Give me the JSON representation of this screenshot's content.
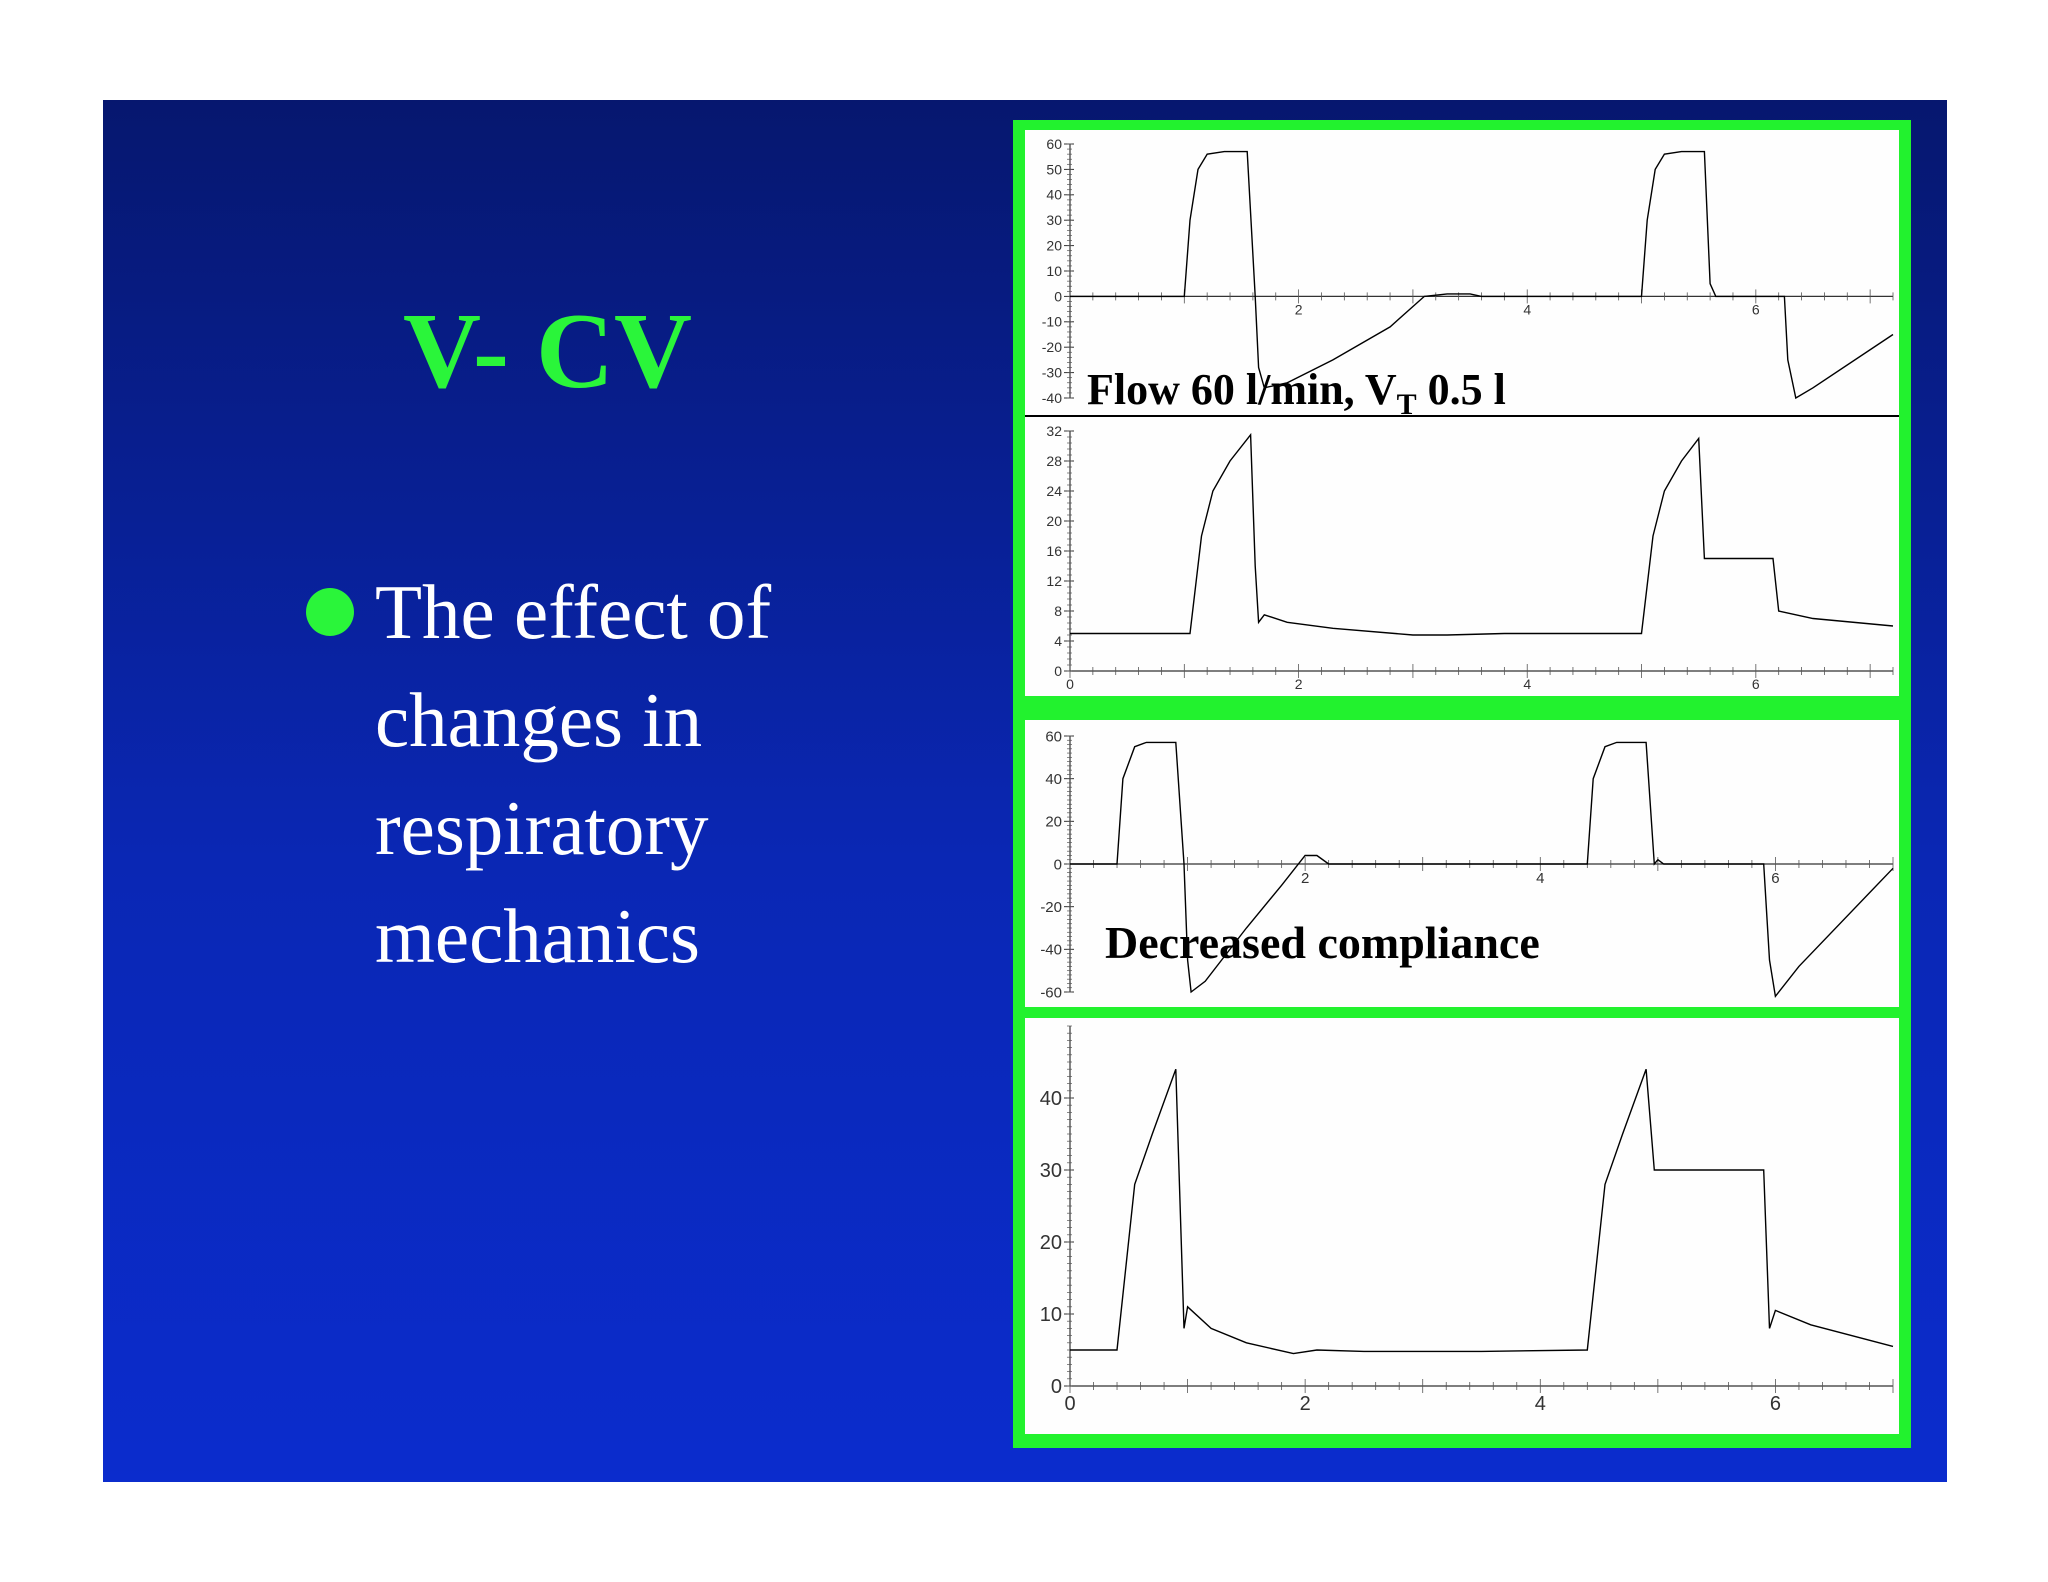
{
  "slide": {
    "title": "V- CV",
    "bullet_lines": [
      "The effect of",
      "changes in",
      "respiratory",
      "mechanics"
    ]
  },
  "colors": {
    "accent": "#2af53a",
    "background_top": "#06176f",
    "background_bottom": "#0b2ccd",
    "trace": "#000000"
  },
  "figure": {
    "caption_top_main": "Flow 60 l/min, V",
    "caption_top_sub": "T",
    "caption_top_tail": " 0.5 l",
    "caption_bottom": "Decreased compliance"
  },
  "chart_data": [
    {
      "type": "line",
      "xlim": [
        0,
        7.2
      ],
      "ylim": [
        -40,
        60
      ],
      "y_ticks": [
        60,
        50,
        40,
        30,
        20,
        10,
        0,
        -10,
        -20,
        -30,
        -40
      ],
      "x_ticks": [
        2,
        4,
        6
      ],
      "x_tick_pos": "zero",
      "series": [
        {
          "points": [
            [
              0,
              0
            ],
            [
              1.0,
              0
            ],
            [
              1.05,
              30
            ],
            [
              1.12,
              50
            ],
            [
              1.2,
              56
            ],
            [
              1.35,
              57
            ],
            [
              1.55,
              57
            ],
            [
              1.62,
              0
            ],
            [
              1.65,
              -28
            ],
            [
              1.7,
              -36
            ],
            [
              1.9,
              -34
            ],
            [
              2.3,
              -25
            ],
            [
              2.8,
              -12
            ],
            [
              3.1,
              0
            ],
            [
              3.3,
              1
            ],
            [
              3.5,
              1
            ],
            [
              3.6,
              0
            ],
            [
              5.0,
              0
            ],
            [
              5.05,
              30
            ],
            [
              5.12,
              50
            ],
            [
              5.2,
              56
            ],
            [
              5.35,
              57
            ],
            [
              5.55,
              57
            ],
            [
              5.6,
              5
            ],
            [
              5.65,
              0
            ],
            [
              6.25,
              0
            ],
            [
              6.28,
              -25
            ],
            [
              6.35,
              -40
            ],
            [
              6.5,
              -36
            ],
            [
              7.2,
              -15
            ]
          ]
        }
      ]
    },
    {
      "type": "line",
      "xlim": [
        0,
        7.2
      ],
      "ylim": [
        0,
        32
      ],
      "y_ticks": [
        32,
        28,
        24,
        20,
        16,
        12,
        8,
        4,
        0
      ],
      "x_ticks": [
        0,
        2,
        4,
        6
      ],
      "x_tick_pos": "bottom",
      "series": [
        {
          "points": [
            [
              0,
              5
            ],
            [
              1.05,
              5
            ],
            [
              1.15,
              18
            ],
            [
              1.25,
              24
            ],
            [
              1.4,
              28
            ],
            [
              1.58,
              31.5
            ],
            [
              1.62,
              14
            ],
            [
              1.65,
              6.5
            ],
            [
              1.7,
              7.5
            ],
            [
              1.9,
              6.5
            ],
            [
              2.3,
              5.7
            ],
            [
              3.0,
              4.8
            ],
            [
              3.3,
              4.8
            ],
            [
              3.8,
              5
            ],
            [
              5.0,
              5
            ],
            [
              5.1,
              18
            ],
            [
              5.2,
              24
            ],
            [
              5.35,
              28
            ],
            [
              5.5,
              31
            ],
            [
              5.55,
              15
            ],
            [
              6.15,
              15
            ],
            [
              6.2,
              8
            ],
            [
              6.5,
              7
            ],
            [
              7.2,
              6
            ]
          ]
        }
      ]
    },
    {
      "type": "line",
      "xlim": [
        0,
        7
      ],
      "ylim": [
        -60,
        60
      ],
      "y_ticks": [
        60,
        40,
        20,
        0,
        -20,
        -40,
        -60
      ],
      "x_ticks": [
        2,
        4,
        6
      ],
      "x_tick_pos": "zero",
      "series": [
        {
          "points": [
            [
              0,
              0
            ],
            [
              0.4,
              0
            ],
            [
              0.45,
              40
            ],
            [
              0.55,
              55
            ],
            [
              0.65,
              57
            ],
            [
              0.9,
              57
            ],
            [
              0.97,
              0
            ],
            [
              1.0,
              -45
            ],
            [
              1.03,
              -60
            ],
            [
              1.15,
              -55
            ],
            [
              1.5,
              -30
            ],
            [
              1.8,
              -10
            ],
            [
              2.0,
              4
            ],
            [
              2.1,
              4
            ],
            [
              2.2,
              0
            ],
            [
              4.4,
              0
            ],
            [
              4.45,
              40
            ],
            [
              4.55,
              55
            ],
            [
              4.65,
              57
            ],
            [
              4.9,
              57
            ],
            [
              4.97,
              0
            ],
            [
              5.0,
              2
            ],
            [
              5.05,
              0
            ],
            [
              5.9,
              0
            ],
            [
              5.95,
              -45
            ],
            [
              6.0,
              -62
            ],
            [
              6.2,
              -48
            ],
            [
              7.0,
              -2
            ]
          ]
        }
      ]
    },
    {
      "type": "line",
      "xlim": [
        0,
        7
      ],
      "ylim": [
        0,
        50
      ],
      "y_ticks": [
        40,
        30,
        20,
        10,
        0
      ],
      "x_ticks": [
        0,
        2,
        4,
        6
      ],
      "x_tick_pos": "bottom",
      "series": [
        {
          "points": [
            [
              0,
              5
            ],
            [
              0.4,
              5
            ],
            [
              0.55,
              28
            ],
            [
              0.7,
              35
            ],
            [
              0.9,
              44
            ],
            [
              0.97,
              8
            ],
            [
              1.0,
              11
            ],
            [
              1.2,
              8
            ],
            [
              1.5,
              6
            ],
            [
              1.9,
              4.5
            ],
            [
              2.1,
              5
            ],
            [
              2.5,
              4.8
            ],
            [
              3.5,
              4.8
            ],
            [
              4.4,
              5
            ],
            [
              4.55,
              28
            ],
            [
              4.7,
              35
            ],
            [
              4.9,
              44
            ],
            [
              4.97,
              30
            ],
            [
              5.9,
              30
            ],
            [
              5.95,
              8
            ],
            [
              6.0,
              10.5
            ],
            [
              6.3,
              8.5
            ],
            [
              7.0,
              5.5
            ]
          ]
        }
      ]
    }
  ]
}
